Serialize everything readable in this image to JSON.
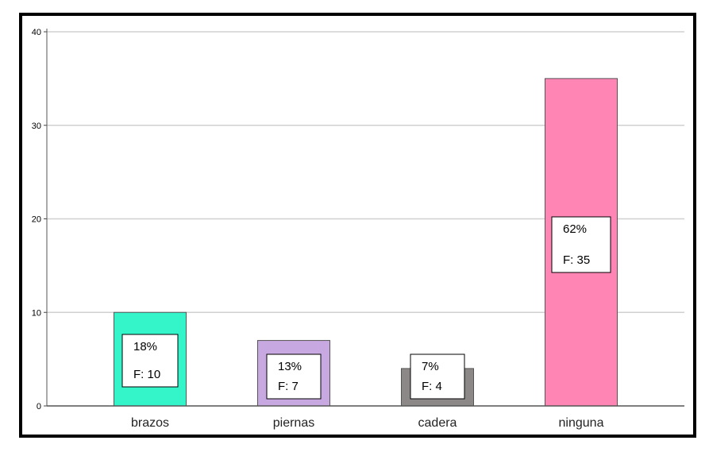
{
  "chart_data": {
    "type": "bar",
    "categories": [
      "brazos",
      "piernas",
      "cadera",
      "ninguna"
    ],
    "values": [
      10,
      7,
      4,
      35
    ],
    "data_labels": [
      {
        "percent": "18%",
        "freq": "F: 10"
      },
      {
        "percent": "13%",
        "freq": "F: 7"
      },
      {
        "percent": "7%",
        "freq": "F: 4"
      },
      {
        "percent": "62%",
        "freq": "F: 35"
      }
    ],
    "colors": [
      "#33f5c9",
      "#c8a8e0",
      "#8c8888",
      "#ff85b4"
    ],
    "yticks": [
      "0",
      "10",
      "20",
      "30",
      "40"
    ],
    "ylim": [
      0,
      40
    ],
    "grid": true,
    "gridline_color": "#d0d0d0",
    "legend": "none"
  }
}
